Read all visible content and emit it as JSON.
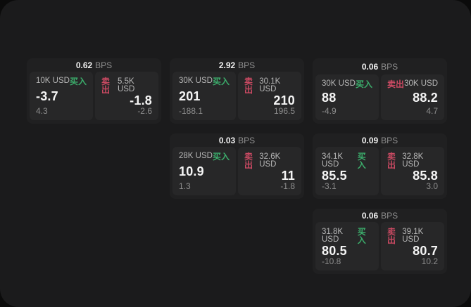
{
  "page": {
    "outer_background": "#0b0b0b",
    "panel_background": "#1b1b1c",
    "card_background": "#202021",
    "subpanel_background": "#272728"
  },
  "labels": {
    "bps_unit": "BPS",
    "buy": "买入",
    "sell": "卖出"
  },
  "colors": {
    "buy_green": "#3cae6c",
    "sell_red": "#cb4a63"
  },
  "cards": [
    {
      "col": 1,
      "row": 1,
      "bps": "0.62",
      "buy": {
        "amount": "10K USD",
        "price": "-3.7",
        "delta": "4.3"
      },
      "sell": {
        "amount": "5.5K USD",
        "price": "-1.8",
        "delta": "-2.6"
      }
    },
    {
      "col": 2,
      "row": 1,
      "bps": "2.92",
      "buy": {
        "amount": "30K USD",
        "price": "201",
        "delta": "-188.1"
      },
      "sell": {
        "amount": "30.1K USD",
        "price": "210",
        "delta": "196.5"
      }
    },
    {
      "col": 3,
      "row": 1,
      "bps": "0.06",
      "buy": {
        "amount": "30K USD",
        "price": "88",
        "delta": "-4.9"
      },
      "sell": {
        "amount": "30K USD",
        "price": "88.2",
        "delta": "4.7"
      }
    },
    {
      "col": 2,
      "row": 2,
      "bps": "0.03",
      "buy": {
        "amount": "28K USD",
        "price": "10.9",
        "delta": "1.3"
      },
      "sell": {
        "amount": "32.6K USD",
        "price": "11",
        "delta": "-1.8"
      }
    },
    {
      "col": 3,
      "row": 2,
      "bps": "0.09",
      "buy": {
        "amount": "34.1K USD",
        "price": "85.5",
        "delta": "-3.1"
      },
      "sell": {
        "amount": "32.8K USD",
        "price": "85.8",
        "delta": "3.0"
      }
    },
    {
      "col": 3,
      "row": 3,
      "bps": "0.06",
      "buy": {
        "amount": "31.8K USD",
        "price": "80.5",
        "delta": "-10.8"
      },
      "sell": {
        "amount": "39.1K USD",
        "price": "80.7",
        "delta": "10.2"
      }
    }
  ]
}
